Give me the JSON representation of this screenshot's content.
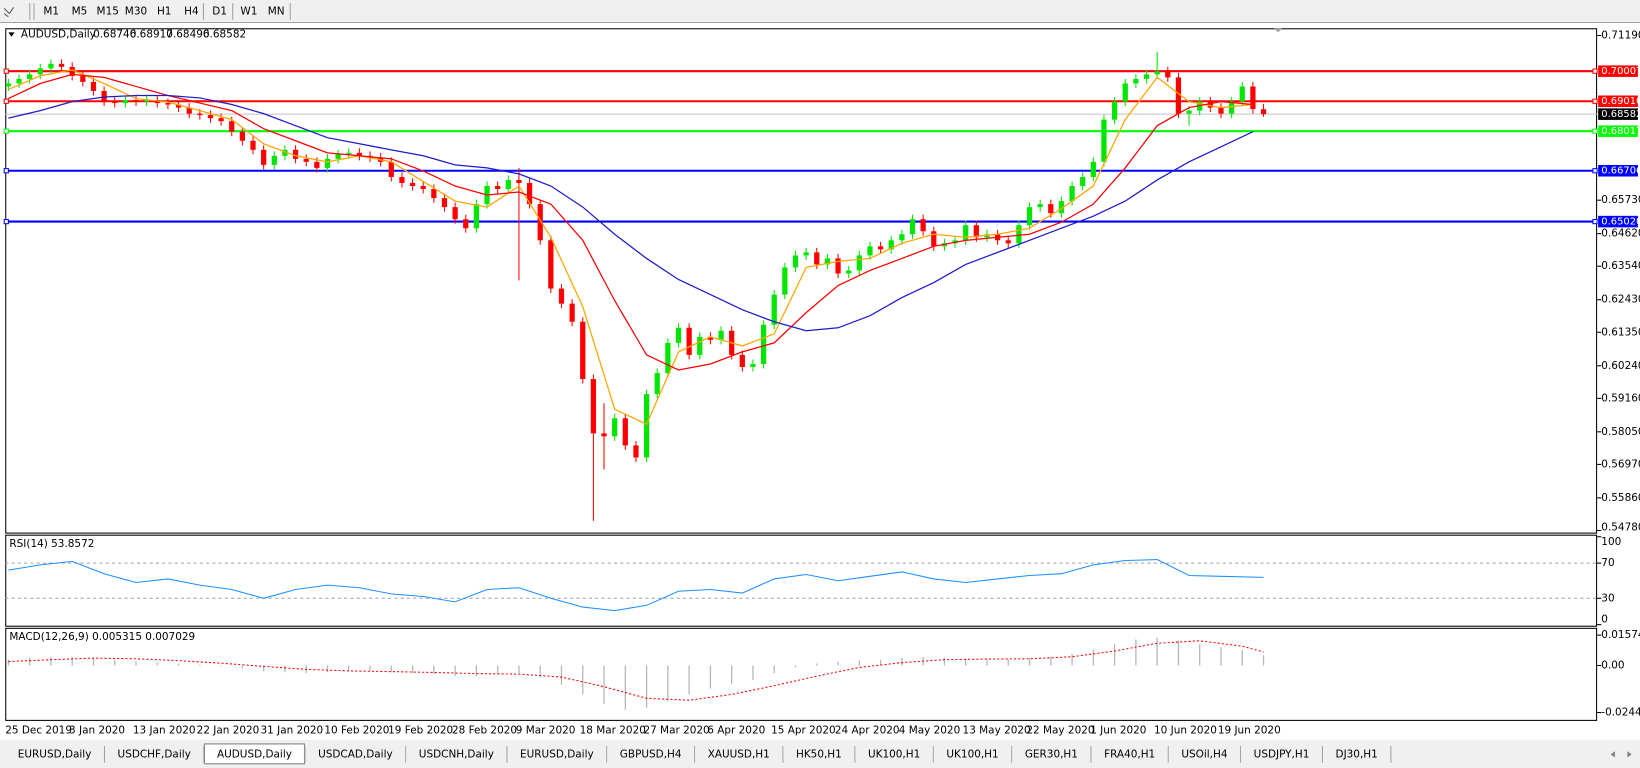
{
  "toolbar": {
    "timeframes": [
      "M1",
      "M5",
      "M15",
      "M30",
      "H1",
      "H4",
      "D1",
      "W1",
      "MN"
    ]
  },
  "tabs": [
    "EURUSD,Daily",
    "USDCHF,Daily",
    "AUDUSD,Daily",
    "USDCAD,Daily",
    "USDCNH,Daily",
    "EURUSD,Daily",
    "GBPUSD,H4",
    "XAUUSD,H1",
    "HK50,H1",
    "UK100,H1",
    "UK100,H1",
    "GER30,H1",
    "FRA40,H1",
    "USOil,H4",
    "USDJPY,H1",
    "DJ30,H1"
  ],
  "active_tab": 2,
  "chart_data": [
    {
      "type": "candlestick",
      "title": "AUDUSD,Daily",
      "categories": [
        "25 Dec 2019",
        null,
        null,
        null,
        null,
        null,
        "3 Jan 2020",
        null,
        null,
        null,
        null,
        null,
        "13 Jan 2020",
        null,
        null,
        null,
        null,
        null,
        "22 Jan 2020",
        null,
        null,
        null,
        null,
        null,
        "31 Jan 2020",
        null,
        null,
        null,
        null,
        null,
        "10 Feb 2020",
        null,
        null,
        null,
        null,
        null,
        "19 Feb 2020",
        null,
        null,
        null,
        null,
        null,
        "28 Feb 2020",
        null,
        null,
        null,
        null,
        null,
        "9 Mar 2020",
        null,
        null,
        null,
        null,
        null,
        "18 Mar 2020",
        null,
        null,
        null,
        null,
        null,
        "27 Mar 2020",
        null,
        null,
        null,
        null,
        null,
        "6 Apr 2020",
        null,
        null,
        null,
        null,
        null,
        "15 Apr 2020",
        null,
        null,
        null,
        null,
        null,
        "24 Apr 2020",
        null,
        null,
        null,
        null,
        null,
        "4 May 2020",
        null,
        null,
        null,
        null,
        null,
        "13 May 2020",
        null,
        null,
        null,
        null,
        null,
        "22 May 2020",
        null,
        null,
        null,
        null,
        null,
        "1 Jun 2020",
        null,
        null,
        null,
        null,
        null,
        "10 Jun 2020",
        null,
        null,
        null,
        null,
        null,
        "19 Jun 2020",
        null,
        null,
        null,
        null
      ],
      "open": [
        0.695,
        0.696,
        0.6975,
        0.699,
        0.701,
        0.7025,
        0.7015,
        0.6985,
        0.6965,
        0.6935,
        0.69,
        0.6895,
        0.6905,
        0.69,
        0.6905,
        0.6895,
        0.689,
        0.688,
        0.686,
        0.6855,
        0.6845,
        0.6835,
        0.68,
        0.677,
        0.674,
        0.669,
        0.672,
        0.674,
        0.671,
        0.67,
        0.668,
        0.671,
        0.6725,
        0.673,
        0.672,
        0.6715,
        0.67,
        0.665,
        0.663,
        0.662,
        0.661,
        0.658,
        0.655,
        0.651,
        0.648,
        0.656,
        0.662,
        0.661,
        0.664,
        0.663,
        0.656,
        0.644,
        0.628,
        0.623,
        0.617,
        0.598,
        0.58,
        0.579,
        0.585,
        0.576,
        0.572,
        0.593,
        0.6,
        0.61,
        0.615,
        0.606,
        0.612,
        0.611,
        0.614,
        0.606,
        0.602,
        0.603,
        0.616,
        0.626,
        0.635,
        0.639,
        0.64,
        0.636,
        0.638,
        0.633,
        0.634,
        0.639,
        0.642,
        0.641,
        0.644,
        0.646,
        0.651,
        0.647,
        0.642,
        0.643,
        0.644,
        0.649,
        0.645,
        0.646,
        0.644,
        0.643,
        0.649,
        0.655,
        0.656,
        0.653,
        0.657,
        0.662,
        0.665,
        0.67,
        0.684,
        0.69,
        0.696,
        0.6975,
        0.699,
        0.7,
        0.698,
        0.686,
        0.687,
        0.69,
        0.688,
        0.686,
        0.69,
        0.695,
        0.68746
      ],
      "high": [
        0.6975,
        0.699,
        0.7005,
        0.7025,
        0.704,
        0.704,
        0.703,
        0.7,
        0.698,
        0.695,
        0.6915,
        0.692,
        0.692,
        0.692,
        0.692,
        0.691,
        0.6905,
        0.6895,
        0.6875,
        0.687,
        0.686,
        0.685,
        0.6815,
        0.6785,
        0.6755,
        0.6735,
        0.6755,
        0.6755,
        0.6725,
        0.6715,
        0.6725,
        0.674,
        0.6745,
        0.6745,
        0.6735,
        0.673,
        0.6715,
        0.6665,
        0.6645,
        0.6635,
        0.6625,
        0.6595,
        0.6565,
        0.6525,
        0.6575,
        0.6635,
        0.6635,
        0.6655,
        0.668,
        0.6645,
        0.6575,
        0.6455,
        0.6295,
        0.6245,
        0.6185,
        0.5995,
        0.59,
        0.5865,
        0.5865,
        0.5775,
        0.5945,
        0.6015,
        0.6115,
        0.6165,
        0.6165,
        0.6135,
        0.6135,
        0.6155,
        0.6155,
        0.6075,
        0.6045,
        0.6175,
        0.6275,
        0.6365,
        0.6405,
        0.6415,
        0.6415,
        0.6395,
        0.6395,
        0.6355,
        0.6405,
        0.6435,
        0.6435,
        0.6455,
        0.6475,
        0.6525,
        0.6525,
        0.6485,
        0.6445,
        0.6455,
        0.6505,
        0.6505,
        0.6475,
        0.6475,
        0.6455,
        0.6505,
        0.6565,
        0.6575,
        0.6575,
        0.6585,
        0.6635,
        0.6665,
        0.6715,
        0.6855,
        0.6915,
        0.6975,
        0.699,
        0.7005,
        0.7065,
        0.7015,
        0.6995,
        0.6885,
        0.6915,
        0.6915,
        0.6895,
        0.6915,
        0.6965,
        0.6965,
        0.68917
      ],
      "low": [
        0.6935,
        0.6945,
        0.696,
        0.6975,
        0.6995,
        0.7,
        0.697,
        0.695,
        0.692,
        0.6885,
        0.688,
        0.688,
        0.6885,
        0.6885,
        0.688,
        0.6875,
        0.6865,
        0.6845,
        0.684,
        0.683,
        0.682,
        0.6785,
        0.6755,
        0.6725,
        0.6675,
        0.6675,
        0.6705,
        0.6695,
        0.6685,
        0.6665,
        0.6665,
        0.6695,
        0.671,
        0.6705,
        0.67,
        0.6685,
        0.6635,
        0.6615,
        0.6605,
        0.6595,
        0.6565,
        0.6535,
        0.6495,
        0.6465,
        0.6465,
        0.6545,
        0.6595,
        0.6595,
        0.6307,
        0.6545,
        0.6425,
        0.6265,
        0.6215,
        0.6155,
        0.5965,
        0.551,
        0.568,
        0.5775,
        0.5745,
        0.5705,
        0.5705,
        0.5915,
        0.5985,
        0.6085,
        0.6045,
        0.6045,
        0.6095,
        0.6095,
        0.6045,
        0.6005,
        0.6005,
        0.6015,
        0.6145,
        0.6245,
        0.6335,
        0.6375,
        0.6345,
        0.6345,
        0.6315,
        0.6315,
        0.6325,
        0.6375,
        0.6395,
        0.6395,
        0.6425,
        0.6445,
        0.6455,
        0.6405,
        0.6405,
        0.6415,
        0.6425,
        0.6435,
        0.6435,
        0.6425,
        0.6415,
        0.6415,
        0.6475,
        0.6535,
        0.6515,
        0.6515,
        0.6555,
        0.6605,
        0.6635,
        0.6685,
        0.6825,
        0.6885,
        0.6945,
        0.696,
        0.6975,
        0.6965,
        0.6845,
        0.682,
        0.6855,
        0.6865,
        0.6845,
        0.6845,
        0.6885,
        0.686,
        0.68496
      ],
      "close": [
        0.696,
        0.6975,
        0.699,
        0.701,
        0.7025,
        0.7015,
        0.6985,
        0.6965,
        0.6935,
        0.69,
        0.6895,
        0.6905,
        0.69,
        0.6905,
        0.6895,
        0.689,
        0.688,
        0.686,
        0.6855,
        0.6845,
        0.6835,
        0.68,
        0.677,
        0.674,
        0.669,
        0.672,
        0.674,
        0.671,
        0.67,
        0.668,
        0.671,
        0.6725,
        0.673,
        0.672,
        0.6715,
        0.67,
        0.665,
        0.663,
        0.662,
        0.661,
        0.658,
        0.655,
        0.651,
        0.648,
        0.656,
        0.662,
        0.661,
        0.664,
        0.663,
        0.656,
        0.644,
        0.628,
        0.623,
        0.617,
        0.598,
        0.58,
        0.579,
        0.585,
        0.576,
        0.572,
        0.593,
        0.6,
        0.61,
        0.615,
        0.606,
        0.612,
        0.611,
        0.614,
        0.606,
        0.602,
        0.603,
        0.616,
        0.626,
        0.635,
        0.639,
        0.64,
        0.636,
        0.638,
        0.633,
        0.634,
        0.639,
        0.642,
        0.641,
        0.644,
        0.646,
        0.651,
        0.647,
        0.642,
        0.643,
        0.644,
        0.649,
        0.645,
        0.646,
        0.644,
        0.643,
        0.649,
        0.655,
        0.656,
        0.653,
        0.657,
        0.662,
        0.665,
        0.67,
        0.684,
        0.69,
        0.696,
        0.6975,
        0.699,
        0.7,
        0.698,
        0.686,
        0.687,
        0.69,
        0.688,
        0.686,
        0.69,
        0.695,
        0.6875,
        0.68582
      ],
      "up_color": "#00e600",
      "down_color": "#ff0000",
      "ma_x": [
        0,
        3,
        6,
        9,
        12,
        15,
        18,
        21,
        24,
        27,
        30,
        33,
        36,
        39,
        42,
        45,
        48,
        51,
        54,
        57,
        60,
        63,
        66,
        69,
        72,
        75,
        78,
        81,
        84,
        87,
        90,
        93,
        96,
        99,
        102,
        105,
        108,
        111,
        114,
        117
      ],
      "lines": [
        {
          "color": "#ffa500",
          "values": [
            0.694,
            0.6985,
            0.7005,
            0.696,
            0.691,
            0.6898,
            0.687,
            0.684,
            0.676,
            0.672,
            0.67,
            0.672,
            0.67,
            0.6635,
            0.657,
            0.655,
            0.662,
            0.645,
            0.622,
            0.588,
            0.583,
            0.607,
            0.612,
            0.609,
            0.613,
            0.635,
            0.637,
            0.638,
            0.643,
            0.646,
            0.645,
            0.646,
            0.648,
            0.6545,
            0.662,
            0.684,
            0.698,
            0.69,
            0.688,
            0.689
          ]
        },
        {
          "color": "#ff0000",
          "values": [
            0.691,
            0.696,
            0.699,
            0.698,
            0.695,
            0.692,
            0.6895,
            0.687,
            0.681,
            0.677,
            0.673,
            0.672,
            0.671,
            0.667,
            0.662,
            0.659,
            0.66,
            0.656,
            0.644,
            0.624,
            0.606,
            0.601,
            0.603,
            0.607,
            0.61,
            0.62,
            0.629,
            0.634,
            0.638,
            0.642,
            0.644,
            0.645,
            0.646,
            0.65,
            0.656,
            0.668,
            0.682,
            0.688,
            0.69,
            0.689
          ]
        },
        {
          "color": "#1c1cc8",
          "values": [
            0.6845,
            0.687,
            0.69,
            0.6915,
            0.692,
            0.692,
            0.6912,
            0.689,
            0.686,
            0.682,
            0.678,
            0.676,
            0.674,
            0.672,
            0.669,
            0.668,
            0.666,
            0.662,
            0.655,
            0.646,
            0.638,
            0.631,
            0.626,
            0.621,
            0.617,
            0.614,
            0.615,
            0.619,
            0.625,
            0.63,
            0.636,
            0.64,
            0.644,
            0.648,
            0.652,
            0.657,
            0.664,
            0.67,
            0.675,
            0.68
          ]
        }
      ],
      "levels": [
        {
          "value": 0.70007,
          "color": "#ff0000"
        },
        {
          "value": 0.6901,
          "label": "0.69010",
          "color": "#ff0000"
        },
        {
          "value": 0.68017,
          "color": "#00ff00"
        },
        {
          "value": 0.66706,
          "color": "#0000ff"
        },
        {
          "value": 0.6502,
          "label": "0.65020",
          "color": "#0000ff"
        }
      ],
      "ylim": [
        0.5471,
        0.7143
      ],
      "yticks": [
        {
          "value": 0.7119,
          "label": "0.71190"
        },
        {
          "value": 0.6573,
          "label": "0.65730"
        },
        {
          "value": 0.6462,
          "label": "0.64620"
        },
        {
          "value": 0.6354,
          "label": "0.63540"
        },
        {
          "value": 0.6243,
          "label": "0.62430"
        },
        {
          "value": 0.6135,
          "label": "0.61350"
        },
        {
          "value": 0.6024,
          "label": "0.60240"
        },
        {
          "value": 0.5916,
          "label": "0.59160"
        },
        {
          "value": 0.5805,
          "label": "0.58050"
        },
        {
          "value": 0.5697,
          "label": "0.56970"
        },
        {
          "value": 0.5586,
          "label": "0.55860"
        },
        {
          "value": 0.5478,
          "label": "0.54780"
        }
      ]
    },
    {
      "type": "line",
      "title": "RSI(14) 53.8572",
      "color": "#1e90ff",
      "x": [
        0,
        3,
        6,
        9,
        12,
        15,
        18,
        21,
        24,
        27,
        30,
        33,
        36,
        39,
        42,
        45,
        48,
        51,
        54,
        57,
        60,
        63,
        66,
        69,
        72,
        75,
        78,
        81,
        84,
        87,
        90,
        93,
        96,
        99,
        102,
        105,
        108,
        111,
        114,
        118
      ],
      "values": [
        62,
        68,
        72,
        58,
        48,
        52,
        45,
        40,
        30,
        40,
        45,
        42,
        35,
        32,
        26,
        40,
        42,
        30,
        20,
        16,
        22,
        38,
        40,
        36,
        52,
        57,
        50,
        55,
        60,
        52,
        48,
        52,
        56,
        58,
        68,
        73,
        74,
        56,
        55,
        53.8572
      ],
      "levels": [
        70,
        30
      ],
      "ylim": [
        0,
        100
      ],
      "yticks": [
        100,
        70,
        30,
        0
      ]
    },
    {
      "type": "macd",
      "title": "MACD(12,26,9) 0.005315 0.007029",
      "hist_color": "#b4b4b4",
      "signal_color": "#ff0000",
      "x_hist": [
        0,
        2,
        4,
        6,
        8,
        10,
        12,
        14,
        16,
        18,
        20,
        22,
        24,
        26,
        28,
        30,
        32,
        34,
        36,
        38,
        40,
        42,
        44,
        46,
        48,
        50,
        52,
        54,
        56,
        58,
        60,
        62,
        64,
        66,
        68,
        70,
        72,
        74,
        76,
        78,
        80,
        82,
        84,
        86,
        88,
        90,
        92,
        94,
        96,
        98,
        100,
        102,
        104,
        106,
        108,
        110,
        112,
        114,
        116,
        118
      ],
      "histogram": [
        0.003,
        0.004,
        0.0045,
        0.0045,
        0.004,
        0.003,
        0.002,
        0.0015,
        0.001,
        0.0005,
        -0.0005,
        -0.0015,
        -0.003,
        -0.0035,
        -0.004,
        -0.0035,
        -0.003,
        -0.003,
        -0.0035,
        -0.004,
        -0.0045,
        -0.0055,
        -0.0055,
        -0.0045,
        -0.004,
        -0.006,
        -0.01,
        -0.015,
        -0.02,
        -0.023,
        -0.022,
        -0.0185,
        -0.015,
        -0.012,
        -0.0095,
        -0.0075,
        -0.004,
        -0.001,
        0.001,
        0.002,
        0.0025,
        0.003,
        0.004,
        0.0045,
        0.004,
        0.0035,
        0.003,
        0.003,
        0.004,
        0.0045,
        0.006,
        0.008,
        0.011,
        0.0135,
        0.0145,
        0.013,
        0.011,
        0.0095,
        0.008,
        0.005315
      ],
      "x_signal": [
        0,
        4,
        8,
        12,
        16,
        20,
        24,
        28,
        32,
        36,
        40,
        44,
        48,
        52,
        56,
        60,
        64,
        68,
        72,
        76,
        80,
        84,
        88,
        92,
        96,
        100,
        104,
        108,
        112,
        116,
        118
      ],
      "signal": [
        0.002,
        0.003,
        0.0038,
        0.0035,
        0.0025,
        0.0012,
        -0.0005,
        -0.002,
        -0.0028,
        -0.0032,
        -0.0036,
        -0.0042,
        -0.0045,
        -0.006,
        -0.011,
        -0.017,
        -0.018,
        -0.015,
        -0.0105,
        -0.0055,
        -0.001,
        0.0015,
        0.003,
        0.0033,
        0.0035,
        0.0045,
        0.0075,
        0.0115,
        0.0128,
        0.01,
        0.007029
      ],
      "ylim": [
        -0.0282,
        0.019
      ],
      "yticks": [
        0.015741,
        {
          "value": 0,
          "label": "0.00"
        },
        -0.02441
      ]
    }
  ]
}
